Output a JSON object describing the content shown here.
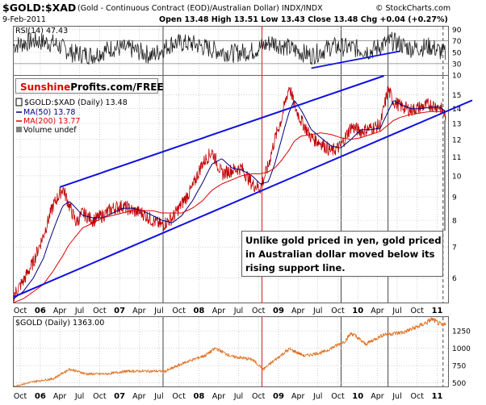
{
  "header": {
    "symbol": "$GOLD:$XAD",
    "description": "(Gold - Continuous Contract (EOD)/Australian Dollar)  INDX/INDX",
    "date": "9-Feb-2011",
    "ohlc": "Open 13.48  High 13.51  Low 13.43  Close 13.48  Chg +0.04 (+0.27%)",
    "credit": "© StockCharts.com"
  },
  "rsi_panel": {
    "label": "RSI(14) 47.43",
    "ticks": [
      "90",
      "70",
      "50",
      "30",
      "10"
    ]
  },
  "price_panel": {
    "legend_main": "$GOLD:$XAD (Daily) 13.48",
    "legend_ma50": "MA(50) 13.78",
    "legend_ma200": "MA(200) 13.77",
    "legend_volume": "Volume undef",
    "ticks": [
      "15",
      "14",
      "13",
      "12",
      "11",
      "10",
      "9",
      "8",
      "7",
      "6"
    ],
    "annotation_line1": "Unlike gold priced in yen, gold priced",
    "annotation_line2": "in Australian dollar moved below its",
    "annotation_line3": "rising support line."
  },
  "brand": {
    "sunshine": "Sunshine",
    "rest": "Profits.com/FREE"
  },
  "gold_panel": {
    "label": "$GOLD (Daily) 1363.00",
    "ticks": [
      "1250",
      "1000",
      "750",
      "500"
    ]
  },
  "x_axis": {
    "labels": [
      "Oct",
      "06",
      "Apr",
      "Jul",
      "Oct",
      "07",
      "Apr",
      "Jul",
      "Oct",
      "08",
      "Apr",
      "Jul",
      "Oct",
      "09",
      "Apr",
      "Jul",
      "Oct",
      "10",
      "Apr",
      "Jul",
      "Oct",
      "11"
    ]
  },
  "colors": {
    "price": "#c00000",
    "ma50": "#000080",
    "ma200": "#e00000",
    "trend": "#1010e0",
    "gold": "#e07020",
    "rsi": "#202020",
    "brand_red": "#e00000"
  },
  "chart_data": [
    {
      "type": "line",
      "title": "RSI(14) 47.43",
      "ylim": [
        10,
        95
      ],
      "x": [
        "2005-09-01",
        "2005-12-01",
        "2006-03-01",
        "2006-06-01",
        "2006-09-01",
        "2006-12-01",
        "2007-03-01",
        "2007-06-01",
        "2007-09-01",
        "2007-12-01",
        "2008-03-01",
        "2008-06-01",
        "2008-09-01",
        "2008-12-01",
        "2009-03-01",
        "2009-06-01",
        "2009-09-01",
        "2009-12-01",
        "2010-03-01",
        "2010-06-01",
        "2010-09-01",
        "2010-12-01",
        "2011-02-09"
      ],
      "series": [
        {
          "name": "RSI(14)",
          "values": [
            62,
            70,
            66,
            48,
            45,
            58,
            55,
            44,
            66,
            65,
            55,
            48,
            52,
            68,
            56,
            44,
            60,
            58,
            52,
            70,
            57,
            60,
            47
          ]
        }
      ]
    },
    {
      "type": "line",
      "title": "$GOLD:$XAD (Daily) 13.48",
      "ylim": [
        5.3,
        16.5
      ],
      "x": [
        "2005-09-01",
        "2005-10-15",
        "2005-12-01",
        "2006-01-15",
        "2006-03-01",
        "2006-04-15",
        "2006-05-15",
        "2006-06-15",
        "2006-07-15",
        "2006-09-01",
        "2006-10-15",
        "2006-12-01",
        "2007-01-15",
        "2007-03-01",
        "2007-04-15",
        "2007-06-01",
        "2007-07-15",
        "2007-09-01",
        "2007-10-15",
        "2007-12-01",
        "2008-01-15",
        "2008-03-01",
        "2008-04-15",
        "2008-06-01",
        "2008-07-15",
        "2008-09-01",
        "2008-10-10",
        "2008-11-15",
        "2008-12-15",
        "2009-01-15",
        "2009-02-20",
        "2009-03-15",
        "2009-04-15",
        "2009-06-01",
        "2009-07-15",
        "2009-09-01",
        "2009-10-15",
        "2009-12-01",
        "2010-01-15",
        "2010-03-01",
        "2010-04-15",
        "2010-05-20",
        "2010-06-15",
        "2010-07-15",
        "2010-09-01",
        "2010-10-15",
        "2010-12-01",
        "2011-01-15",
        "2011-02-09"
      ],
      "series": [
        {
          "name": "$GOLD:$XAD (Daily)",
          "values": [
            5.5,
            5.9,
            6.5,
            7.4,
            8.6,
            9.4,
            8.6,
            7.9,
            8.3,
            8.0,
            8.2,
            8.5,
            8.6,
            8.4,
            8.3,
            8.0,
            7.8,
            8.1,
            8.7,
            9.4,
            10.6,
            11.3,
            10.1,
            10.3,
            10.4,
            9.6,
            9.4,
            10.5,
            12.0,
            13.3,
            15.7,
            14.2,
            13.2,
            12.1,
            11.8,
            11.3,
            11.6,
            12.8,
            12.5,
            12.7,
            12.9,
            15.4,
            14.5,
            14.2,
            13.9,
            14.1,
            14.3,
            14.1,
            13.48
          ]
        },
        {
          "name": "MA(50) 13.78",
          "values": [
            5.4,
            5.6,
            6.0,
            6.6,
            7.6,
            8.6,
            8.8,
            8.5,
            8.2,
            8.1,
            8.1,
            8.3,
            8.5,
            8.5,
            8.4,
            8.2,
            8.0,
            7.9,
            8.2,
            8.8,
            9.6,
            10.6,
            10.9,
            10.4,
            10.3,
            10.0,
            9.6,
            9.7,
            10.6,
            12.0,
            13.8,
            14.6,
            13.9,
            12.6,
            12.1,
            11.6,
            11.5,
            12.0,
            12.6,
            12.6,
            12.7,
            13.8,
            14.6,
            14.3,
            14.0,
            14.0,
            14.1,
            14.1,
            13.78
          ]
        },
        {
          "name": "MA(200) 13.77",
          "values": [
            5.3,
            5.4,
            5.6,
            5.8,
            6.2,
            6.7,
            7.1,
            7.4,
            7.7,
            7.9,
            8.1,
            8.2,
            8.3,
            8.4,
            8.4,
            8.4,
            8.3,
            8.3,
            8.3,
            8.5,
            8.8,
            9.3,
            9.6,
            9.8,
            10.0,
            10.1,
            10.1,
            10.2,
            10.4,
            10.8,
            11.4,
            11.9,
            12.2,
            12.3,
            12.4,
            12.3,
            12.1,
            12.0,
            12.1,
            12.3,
            12.5,
            12.9,
            13.2,
            13.4,
            13.6,
            13.7,
            13.8,
            13.8,
            13.77
          ]
        }
      ]
    },
    {
      "type": "line",
      "title": "$GOLD (Daily) 1363.00",
      "ylim": [
        450,
        1450
      ],
      "x": [
        "2005-09-01",
        "2005-12-01",
        "2006-03-01",
        "2006-05-15",
        "2006-08-01",
        "2006-11-01",
        "2007-02-01",
        "2007-05-01",
        "2007-08-01",
        "2007-11-01",
        "2008-02-01",
        "2008-03-17",
        "2008-06-01",
        "2008-09-01",
        "2008-10-24",
        "2008-12-15",
        "2009-02-20",
        "2009-05-01",
        "2009-08-01",
        "2009-11-01",
        "2009-12-03",
        "2010-02-05",
        "2010-05-01",
        "2010-08-01",
        "2010-11-01",
        "2010-12-07",
        "2011-01-28",
        "2011-02-09"
      ],
      "series": [
        {
          "name": "$GOLD (Daily)",
          "values": [
            450,
            520,
            560,
            700,
            630,
            630,
            670,
            670,
            670,
            800,
            900,
            1000,
            880,
            840,
            700,
            830,
            990,
            890,
            950,
            1100,
            1220,
            1060,
            1200,
            1230,
            1350,
            1420,
            1320,
            1363
          ]
        }
      ]
    }
  ]
}
